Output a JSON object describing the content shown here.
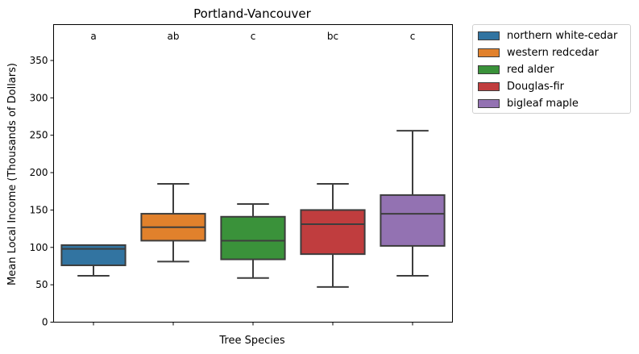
{
  "chart_data": {
    "type": "box",
    "title": "Portland-Vancouver",
    "xlabel": "Tree Species",
    "ylabel": "Mean Local Income (Thousands of Dollars)",
    "ylim": [
      0,
      398
    ],
    "yticks": [
      0,
      50,
      100,
      150,
      200,
      250,
      300,
      350
    ],
    "grid": false,
    "legend_position": "outside-top-right",
    "categories": [
      "northern white-cedar",
      "western redcedar",
      "red alder",
      "Douglas-fir",
      "bigleaf maple"
    ],
    "colors": [
      "#3274a1",
      "#e1812c",
      "#3a923a",
      "#c03d3e",
      "#9372b2"
    ],
    "group_letters": [
      "a",
      "ab",
      "c",
      "bc",
      "c"
    ],
    "boxes": [
      {
        "name": "northern white-cedar",
        "whislo": 62,
        "q1": 76,
        "med": 98,
        "q3": 103,
        "whishi": 103
      },
      {
        "name": "western redcedar",
        "whislo": 81,
        "q1": 109,
        "med": 127,
        "q3": 145,
        "whishi": 185
      },
      {
        "name": "red alder",
        "whislo": 59,
        "q1": 84,
        "med": 109,
        "q3": 141,
        "whishi": 158
      },
      {
        "name": "Douglas-fir",
        "whislo": 47,
        "q1": 91,
        "med": 131,
        "q3": 150,
        "whishi": 185
      },
      {
        "name": "bigleaf maple",
        "whislo": 62,
        "q1": 102,
        "med": 145,
        "q3": 170,
        "whishi": 256
      }
    ]
  }
}
